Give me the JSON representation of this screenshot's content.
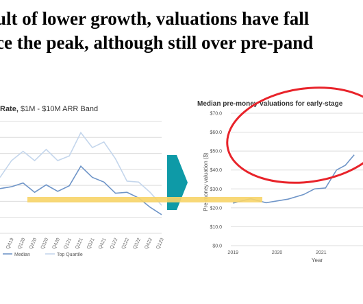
{
  "headline": {
    "line1": "ult of lower growth, valuations have fall",
    "line2": "ce the peak, although still over pre-pand"
  },
  "colors": {
    "median": "#6f95c8",
    "top_quartile": "#c4d6ec",
    "highlight_bar": "#f7d468",
    "arrow": "#0e9aa7",
    "ellipse": "#e8232a",
    "grid": "#dcdcdc"
  },
  "chart_data": [
    {
      "type": "line",
      "title_bold": "Rate,",
      "title_rest": " $1M - $10M ARR Band",
      "categories": [
        "",
        "Q419",
        "Q120",
        "Q220",
        "Q320",
        "Q420",
        "Q121",
        "Q221",
        "Q321",
        "Q421",
        "Q122",
        "Q222",
        "Q322",
        "Q422",
        "Q123"
      ],
      "series": [
        {
          "name": "Median",
          "values": [
            48,
            50,
            54,
            44,
            52,
            45,
            51,
            72,
            60,
            55,
            43,
            44,
            38,
            28,
            20
          ]
        },
        {
          "name": "Top Quartile",
          "values": [
            60,
            78,
            88,
            78,
            90,
            78,
            83,
            108,
            92,
            98,
            80,
            56,
            55,
            44,
            30
          ]
        }
      ],
      "legend": [
        "Median",
        "Top Quartile"
      ],
      "legend_position": "bottom-left",
      "grid": true
    },
    {
      "type": "line",
      "title": "Median pre-money valuations for early-stage",
      "xlabel": "Year",
      "ylabel": "Pre-money valuation ($)",
      "y_ticks": [
        "$0.0",
        "$10.0",
        "$20.0",
        "$30.0",
        "$40.0",
        "$50.0",
        "$60.0",
        "$70.0"
      ],
      "x_ticks": [
        "2019",
        "2020",
        "2021"
      ],
      "ylim": [
        0,
        70
      ],
      "series": [
        {
          "name": "",
          "values": [
            [
              2019.0,
              22.5
            ],
            [
              2019.4,
              24.8
            ],
            [
              2019.75,
              22.7
            ],
            [
              2020.25,
              24.6
            ],
            [
              2020.6,
              27.0
            ],
            [
              2020.85,
              30.0
            ],
            [
              2021.1,
              30.5
            ],
            [
              2021.35,
              40.0
            ],
            [
              2021.55,
              42.5
            ],
            [
              2021.75,
              48.0
            ]
          ]
        }
      ],
      "grid": true
    }
  ]
}
